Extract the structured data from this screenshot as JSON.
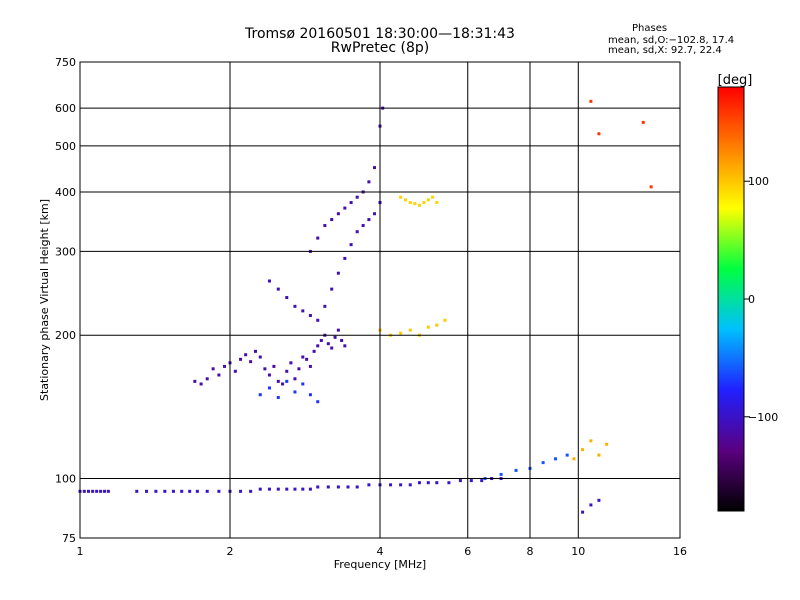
{
  "figure": {
    "title_line1": "Tromsø 20160501 18:30:00—18:31:43",
    "title_line2": "RwPretec (8p)",
    "phase_header": "Phases",
    "phase_o": "mean, sd,O:−102.8, 17.4",
    "phase_x": "mean, sd,X: 92.7, 22.4"
  },
  "colorbar": {
    "label": "[deg]",
    "ticks": [
      "100",
      "0",
      "−100"
    ],
    "tick_values": [
      100,
      0,
      -100
    ],
    "range": [
      -180,
      180
    ],
    "colormap": [
      "#000000",
      "#5a0080",
      "#2020ff",
      "#00c0ff",
      "#00ff40",
      "#ffff00",
      "#ff8000",
      "#ff0000"
    ]
  },
  "chart_data": {
    "type": "scatter",
    "title": "Tromsø 20160501 18:30:00—18:31:43",
    "subtitle": "RwPretec (8p)",
    "xlabel": "Frequency [MHz]",
    "ylabel": "Stationary phase Virtual Height [km]",
    "xscale": "log",
    "yscale": "log",
    "xlim": [
      1,
      16
    ],
    "ylim": [
      75,
      750
    ],
    "xticks": [
      1,
      2,
      4,
      6,
      8,
      10,
      16
    ],
    "yticks": [
      75,
      100,
      200,
      300,
      400,
      500,
      600,
      750
    ],
    "grid": true,
    "color_variable": "phase [deg]",
    "series": [
      {
        "x": [
          1.0,
          1.02,
          1.04,
          1.06,
          1.08,
          1.1,
          1.12,
          1.14
        ],
        "y": [
          94,
          94,
          94,
          94,
          94,
          94,
          94,
          94
        ],
        "phase": -100
      },
      {
        "x": [
          1.3,
          1.36,
          1.42,
          1.48,
          1.54,
          1.6,
          1.66,
          1.72,
          1.8,
          1.9,
          2.0,
          2.1,
          2.2,
          2.3,
          2.4,
          2.5,
          2.6,
          2.7,
          2.8,
          2.9,
          3.0,
          3.15,
          3.3,
          3.45,
          3.6,
          3.8,
          4.0,
          4.2,
          4.4,
          4.6,
          4.8,
          5.0,
          5.2,
          5.5,
          5.8,
          6.1,
          6.4,
          6.7,
          7.0
        ],
        "y": [
          94,
          94,
          94,
          94,
          94,
          94,
          94,
          94,
          94,
          94,
          94,
          94,
          94,
          95,
          95,
          95,
          95,
          95,
          95,
          95,
          96,
          96,
          96,
          96,
          96,
          97,
          97,
          97,
          97,
          97,
          98,
          98,
          98,
          98,
          99,
          99,
          99,
          100,
          100
        ],
        "phase": -100
      },
      {
        "x": [
          1.7,
          1.75,
          1.8,
          1.85,
          1.9,
          1.95,
          2.0,
          2.05,
          2.1,
          2.15,
          2.2,
          2.25,
          2.3,
          2.35,
          2.4,
          2.45,
          2.5,
          2.55,
          2.6,
          2.65,
          2.7,
          2.75,
          2.8,
          2.85,
          2.9,
          2.95,
          3.0,
          3.05,
          3.1,
          3.15,
          3.2,
          3.25,
          3.3,
          3.35,
          3.4
        ],
        "y": [
          160,
          158,
          162,
          170,
          165,
          172,
          175,
          168,
          178,
          182,
          176,
          185,
          180,
          170,
          165,
          172,
          160,
          158,
          168,
          175,
          162,
          170,
          180,
          178,
          172,
          185,
          190,
          195,
          200,
          192,
          188,
          198,
          205,
          195,
          190
        ],
        "phase": -110
      },
      {
        "x": [
          2.3,
          2.4,
          2.5,
          2.6,
          2.7,
          2.8,
          2.9,
          3.0
        ],
        "y": [
          150,
          155,
          148,
          160,
          152,
          158,
          150,
          145
        ],
        "phase": -70
      },
      {
        "x": [
          2.4,
          2.5,
          2.6,
          2.7,
          2.8,
          2.9,
          3.0,
          3.1,
          3.2,
          3.3,
          3.4,
          3.5,
          3.6,
          3.7,
          3.8,
          3.9,
          4.0
        ],
        "y": [
          260,
          250,
          240,
          230,
          225,
          220,
          215,
          230,
          250,
          270,
          290,
          310,
          330,
          340,
          350,
          360,
          380
        ],
        "phase": -105
      },
      {
        "x": [
          2.9,
          3.0,
          3.1,
          3.2,
          3.3,
          3.4,
          3.5,
          3.6,
          3.7,
          3.8,
          3.9,
          4.0,
          4.05
        ],
        "y": [
          300,
          320,
          340,
          350,
          360,
          370,
          380,
          390,
          400,
          420,
          450,
          550,
          600
        ],
        "phase": -110
      },
      {
        "x": [
          4.0,
          4.2,
          4.4,
          4.6,
          4.8,
          5.0,
          5.2,
          5.4
        ],
        "y": [
          205,
          200,
          202,
          205,
          200,
          208,
          210,
          215
        ],
        "phase": 100
      },
      {
        "x": [
          4.4,
          4.5,
          4.6,
          4.7,
          4.8,
          4.9,
          5.0,
          5.1,
          5.2
        ],
        "y": [
          390,
          385,
          380,
          378,
          375,
          380,
          385,
          390,
          380
        ],
        "phase": 95
      },
      {
        "x": [
          6.5,
          7.0,
          7.5,
          8.0,
          8.5,
          9.0,
          9.5
        ],
        "y": [
          100,
          102,
          104,
          105,
          108,
          110,
          112
        ],
        "phase": -60
      },
      {
        "x": [
          9.8,
          10.2,
          10.6,
          11.0,
          11.4
        ],
        "y": [
          110,
          115,
          120,
          112,
          118
        ],
        "phase": 110
      },
      {
        "x": [
          10.2,
          10.6,
          11.0
        ],
        "y": [
          85,
          88,
          90
        ],
        "phase": -100
      },
      {
        "x": [
          10.6,
          11.0,
          13.5,
          14.0
        ],
        "y": [
          620,
          530,
          560,
          410
        ],
        "phase": 160
      }
    ]
  }
}
